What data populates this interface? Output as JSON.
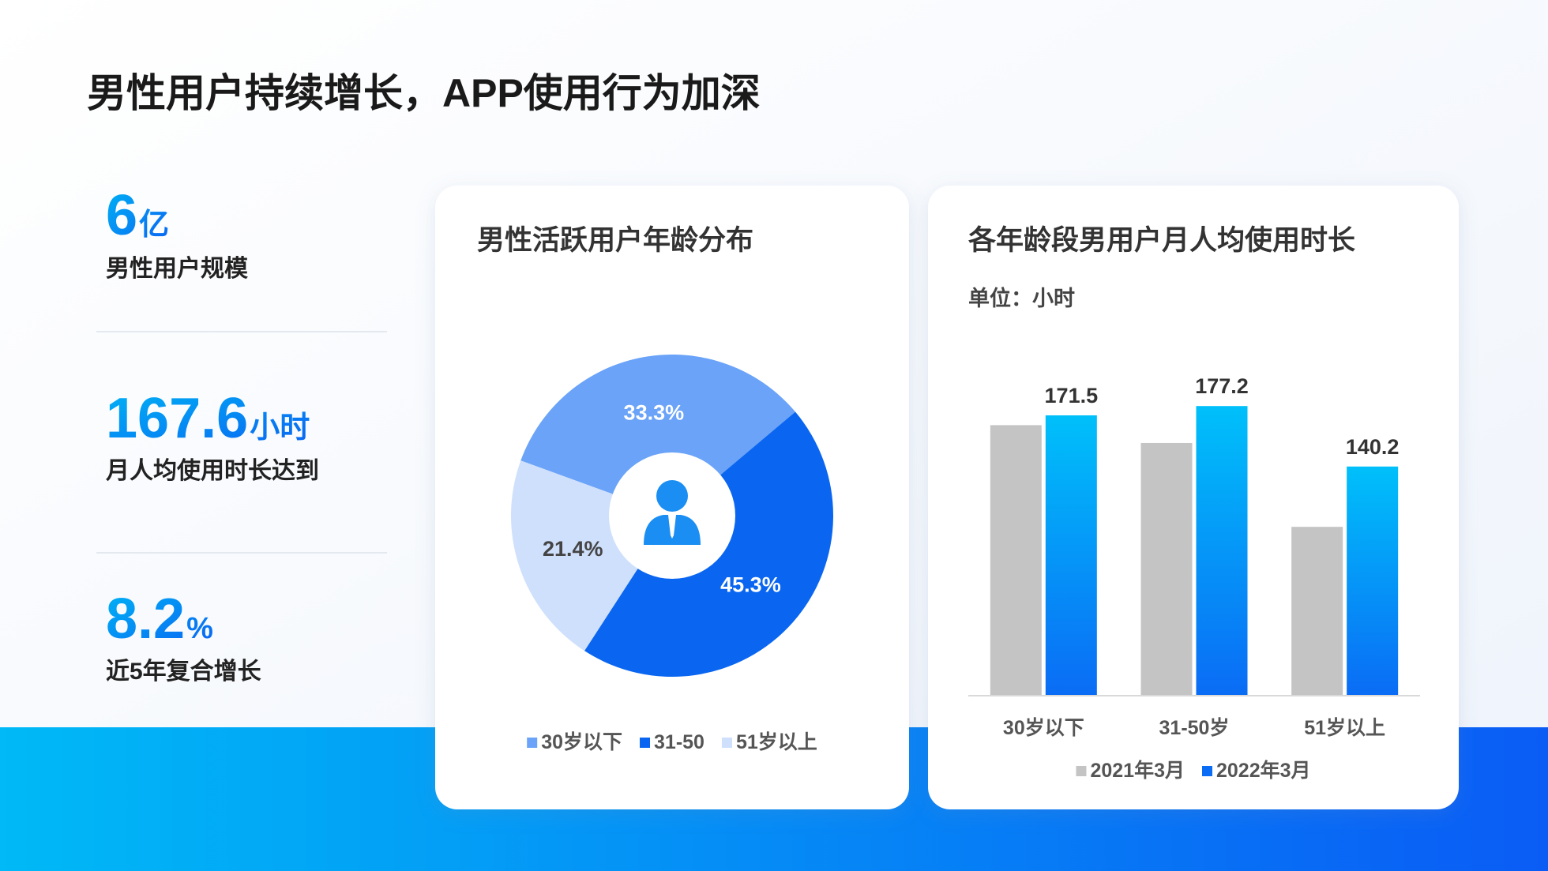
{
  "title": "男性用户持续增长，APP使用行为加深",
  "stats": [
    {
      "value": 6,
      "unit": "亿",
      "label": "男性用户规模"
    },
    {
      "value": 167.6,
      "unit": "小时",
      "label": "月人均使用时长达到"
    },
    {
      "value": 8.2,
      "unit": "%",
      "label": "近5年复合增长"
    }
  ],
  "chart_data": [
    {
      "type": "pie",
      "title": "男性活跃用户年龄分布",
      "categories": [
        "30岁以下",
        "31-50",
        "51岁以上"
      ],
      "values": [
        33.3,
        45.3,
        21.4
      ],
      "value_labels": [
        "33.3%",
        "45.3%",
        "21.4%"
      ],
      "colors": [
        "#6aa3f8",
        "#0a66f0",
        "#cfe0fc"
      ],
      "legend": "bottom"
    },
    {
      "type": "bar",
      "title": "各年龄段男用户月人均使用时长",
      "subtitle": "单位：小时",
      "categories": [
        "30岁以下",
        "31-50岁",
        "51岁以上"
      ],
      "series": [
        {
          "name": "2021年3月",
          "color": "#c4c4c4",
          "values": [
            165.5,
            154.6,
            103.3
          ],
          "show_labels": false
        },
        {
          "name": "2022年3月",
          "color": "#0a6cf5",
          "values": [
            171.5,
            177.2,
            140.2
          ],
          "show_labels": true
        }
      ],
      "ylim": [
        0,
        200
      ],
      "legend": "bottom"
    }
  ]
}
